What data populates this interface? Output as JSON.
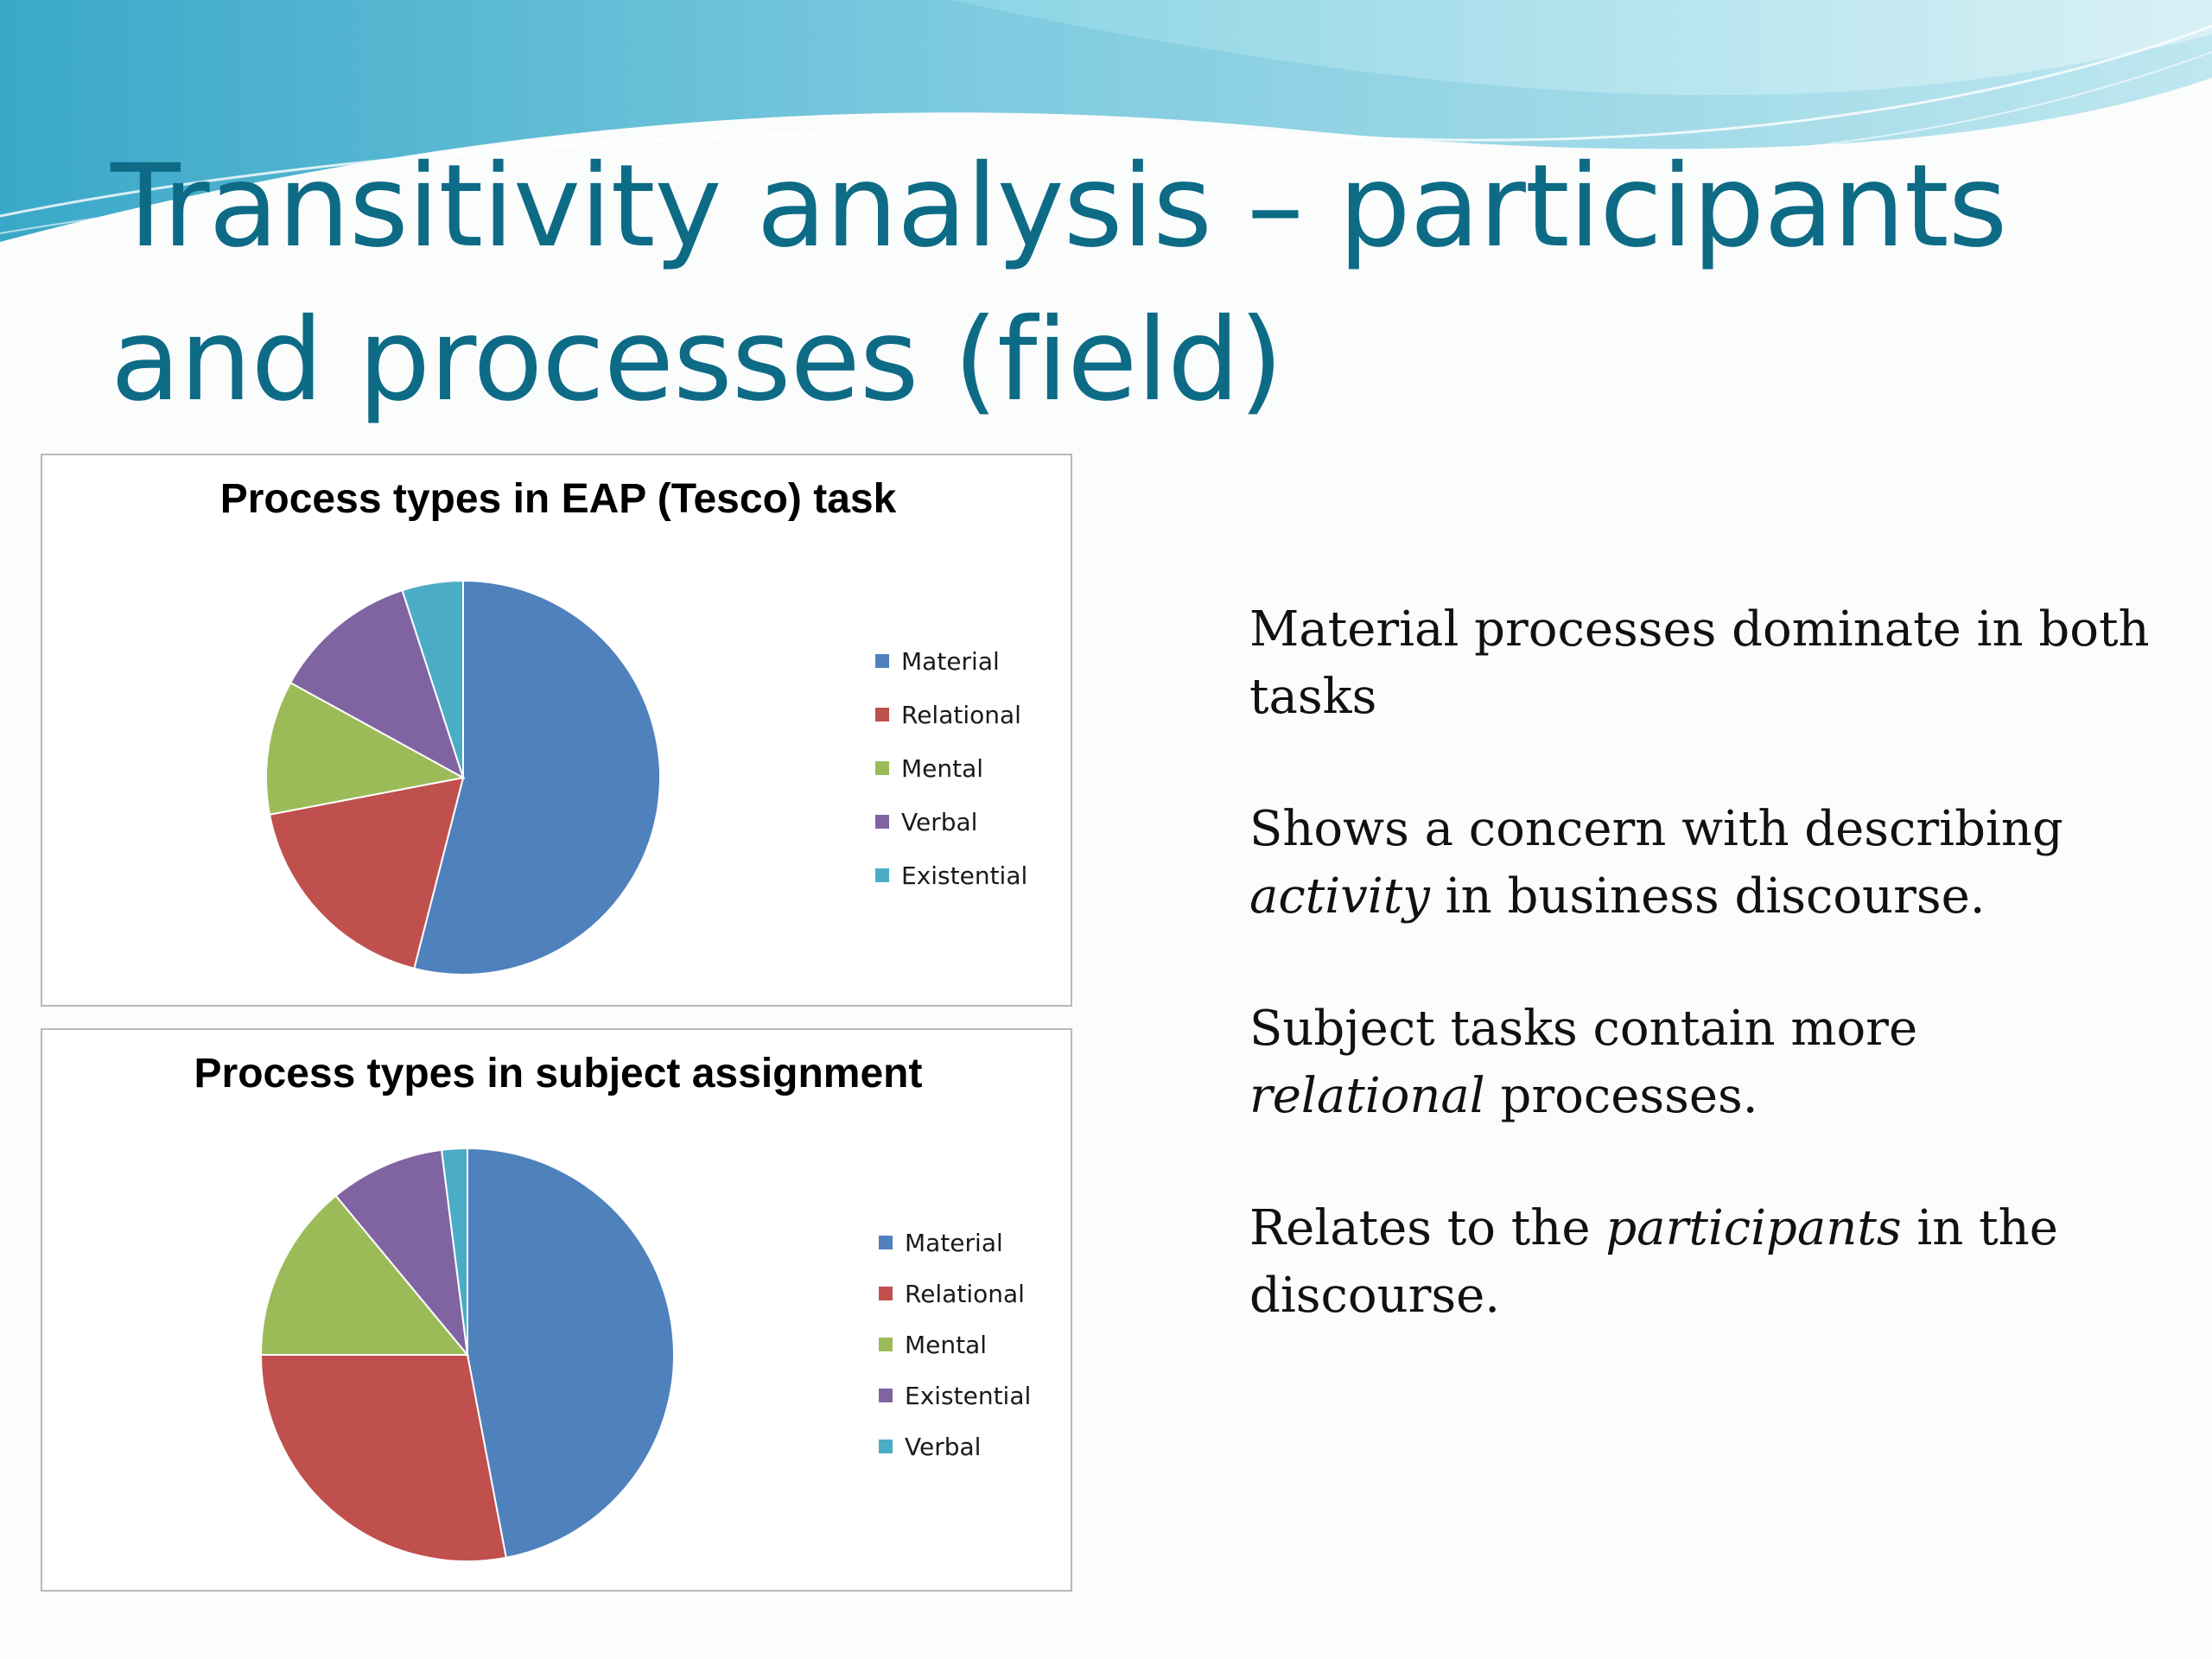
{
  "title": "Transitivity analysis – participants and processes (field)",
  "colors": {
    "title": "#0d6b86",
    "Material": "#4f81bd",
    "Relational": "#c0504d",
    "Mental": "#9bbb59",
    "Verbal_eap": "#8064a2",
    "Existential_eap": "#4bacc6",
    "Existential_subject": "#8064a2",
    "Verbal_subject": "#4bacc6"
  },
  "chart_data": [
    {
      "type": "pie",
      "title": "Process types in EAP (Tesco) task",
      "categories": [
        "Material",
        "Relational",
        "Mental",
        "Verbal",
        "Existential"
      ],
      "values": [
        54,
        18,
        11,
        12,
        5
      ],
      "legend": "right"
    },
    {
      "type": "pie",
      "title": "Process types in subject assignment",
      "categories": [
        "Material",
        "Relational",
        "Mental",
        "Existential",
        "Verbal"
      ],
      "values": [
        47,
        28,
        14,
        9,
        2
      ],
      "legend": "right"
    }
  ],
  "bullets": [
    {
      "segments": [
        {
          "text": "Material processes dominate in both tasks",
          "italic": false
        }
      ]
    },
    {
      "segments": [
        {
          "text": "Shows a concern with describing ",
          "italic": false
        },
        {
          "text": "activity",
          "italic": true
        },
        {
          "text": " in business discourse.",
          "italic": false
        }
      ]
    },
    {
      "segments": [
        {
          "text": "Subject tasks contain more ",
          "italic": false
        },
        {
          "text": "relational",
          "italic": true
        },
        {
          "text": " processes.",
          "italic": false
        }
      ]
    },
    {
      "segments": [
        {
          "text": "Relates to the ",
          "italic": false
        },
        {
          "text": "participants",
          "italic": true
        },
        {
          "text": " in the discourse.",
          "italic": false
        }
      ]
    }
  ]
}
